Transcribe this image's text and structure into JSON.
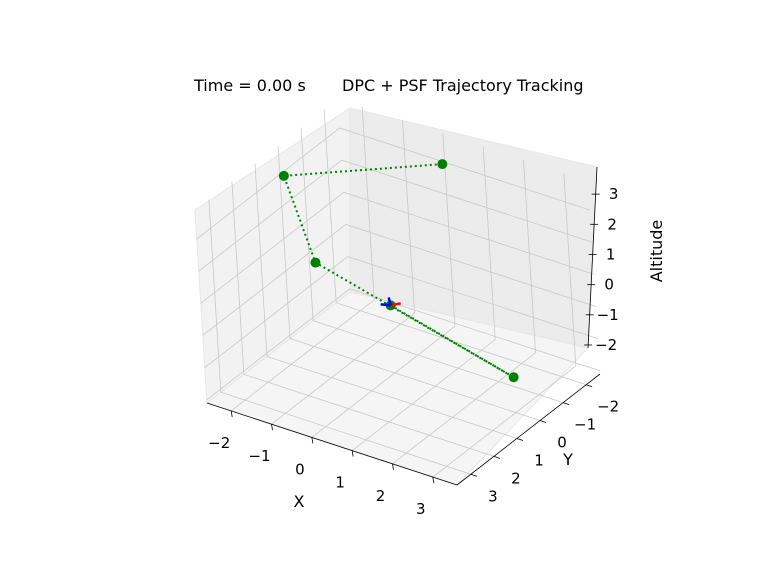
{
  "figure": {
    "time_label": "Time = 0.00 s",
    "title": "DPC + PSF Trajectory Tracking"
  },
  "chart_data": {
    "type": "scatter3d",
    "title": "DPC + PSF Trajectory Tracking",
    "xlabel": "X",
    "ylabel": "Y",
    "zlabel": "Altitude",
    "xlim": [
      -2.6,
      3.6
    ],
    "ylim": [
      -2.6,
      3.6
    ],
    "zlim": [
      -2.1,
      3.9
    ],
    "xticks": [
      -2,
      -1,
      0,
      1,
      2,
      3
    ],
    "yticks": [
      -2,
      -1,
      0,
      1,
      2,
      3
    ],
    "zticks": [
      -2,
      -1,
      0,
      1,
      2,
      3
    ],
    "grid": true,
    "series": [
      {
        "type": "line",
        "style": "dotted",
        "color": "#008000",
        "points": [
          {
            "x": 0.0,
            "y": 0.0,
            "z": 0.0
          },
          {
            "x": 3.0,
            "y": 0.0,
            "z": -1.0
          },
          {
            "x": 0.0,
            "y": 3.0,
            "z": 3.0
          },
          {
            "x": -2.5,
            "y": 0.0,
            "z": 3.0
          },
          {
            "x": 0.0,
            "y": -2.5,
            "z": 3.0
          }
        ]
      },
      {
        "type": "markers",
        "color": "#008000",
        "points": [
          {
            "x": 3.0,
            "y": 0.0,
            "z": -1.0
          },
          {
            "x": 0.0,
            "y": 3.0,
            "z": 3.0
          },
          {
            "x": -2.5,
            "y": 0.0,
            "z": 3.0
          },
          {
            "x": 0.0,
            "y": -2.5,
            "z": 3.0
          },
          {
            "x": 0.0,
            "y": 0.0,
            "z": 0.0
          }
        ]
      }
    ],
    "body_frame_axes": {
      "origin": {
        "x": 0.0,
        "y": 0.0,
        "z": 0.0
      },
      "colors": {
        "x_axis": "#ff0000",
        "y_axis": "#0000ff",
        "z_axis": "#0000ff"
      }
    }
  }
}
